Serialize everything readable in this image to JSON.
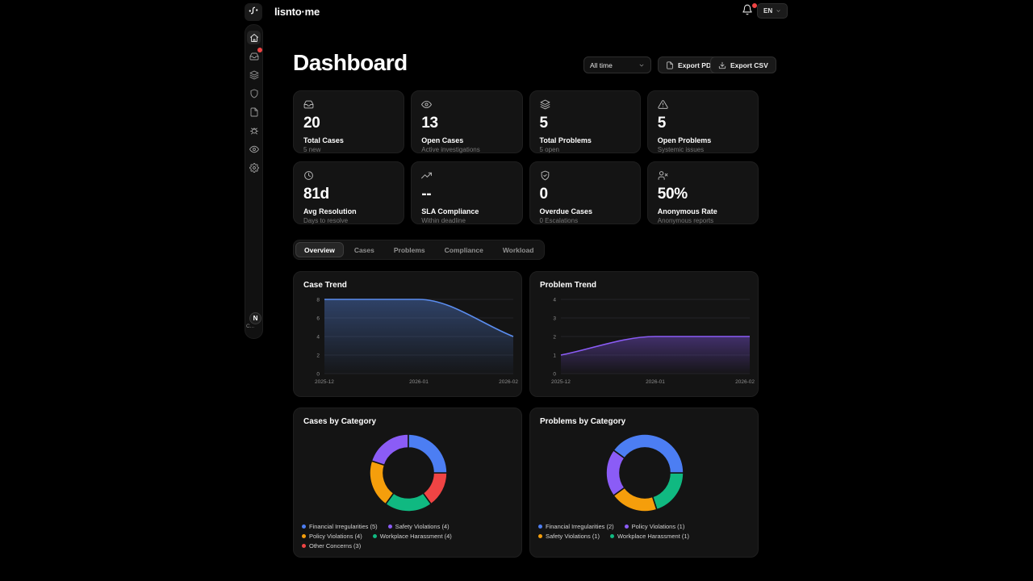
{
  "brand": {
    "name": "lisnto·me"
  },
  "topbar": {
    "language": "EN",
    "has_notification": true
  },
  "sidebar": {
    "items": [
      {
        "icon": "home-icon",
        "active": true
      },
      {
        "icon": "inbox-icon",
        "badge": true
      },
      {
        "icon": "layers-icon"
      },
      {
        "icon": "shield-icon"
      },
      {
        "icon": "document-icon"
      },
      {
        "icon": "bug-icon"
      },
      {
        "icon": "eye-icon"
      },
      {
        "icon": "settings-icon"
      }
    ],
    "user": {
      "initial": "N",
      "label": "C..."
    }
  },
  "header": {
    "title": "Dashboard",
    "time_filter": "All time",
    "export_pdf_label": "Export PDF",
    "export_csv_label": "Export CSV"
  },
  "stats": [
    {
      "icon": "inbox-icon",
      "value": "20",
      "label": "Total Cases",
      "sub": "5 new"
    },
    {
      "icon": "eye-icon",
      "value": "13",
      "label": "Open Cases",
      "sub": "Active investigations"
    },
    {
      "icon": "layers-icon",
      "value": "5",
      "label": "Total Problems",
      "sub": "5 open"
    },
    {
      "icon": "alert-triangle-icon",
      "value": "5",
      "label": "Open Problems",
      "sub": "Systemic issues"
    },
    {
      "icon": "clock-icon",
      "value": "81d",
      "label": "Avg Resolution",
      "sub": "Days to resolve"
    },
    {
      "icon": "trending-up-icon",
      "value": "--",
      "label": "SLA Compliance",
      "sub": "Within deadline"
    },
    {
      "icon": "shield-check-icon",
      "value": "0",
      "label": "Overdue Cases",
      "sub": "0 Escalations"
    },
    {
      "icon": "user-x-icon",
      "value": "50%",
      "label": "Anonymous Rate",
      "sub": "Anonymous reports"
    }
  ],
  "tabs": {
    "items": [
      "Overview",
      "Cases",
      "Problems",
      "Compliance",
      "Workload"
    ],
    "active": "Overview"
  },
  "chart_data": [
    {
      "type": "area",
      "title": "Case Trend",
      "x": [
        "2025-12",
        "2026-01",
        "2026-02"
      ],
      "values": [
        8,
        8,
        4
      ],
      "ylim": [
        0,
        8
      ],
      "yticks": [
        0,
        2,
        4,
        6,
        8
      ],
      "line_color": "#5b8def",
      "grid": true,
      "legend": "none"
    },
    {
      "type": "area",
      "title": "Problem Trend",
      "x": [
        "2025-12",
        "2026-01",
        "2026-02"
      ],
      "values": [
        1,
        2,
        2
      ],
      "ylim": [
        0,
        4
      ],
      "yticks": [
        0,
        1,
        2,
        3,
        4
      ],
      "line_color": "#8b5cf6",
      "grid": true,
      "legend": "none"
    },
    {
      "type": "donut",
      "title": "Cases by Category",
      "start_angle_deg": 90,
      "draw_order": "reverse-legend",
      "legend_position": "bottom",
      "items": [
        {
          "label": "Financial Irregularities",
          "value": 5,
          "color": "#4c7ef3"
        },
        {
          "label": "Safety Violations",
          "value": 4,
          "color": "#8b5cf6"
        },
        {
          "label": "Policy Violations",
          "value": 4,
          "color": "#f59e0b"
        },
        {
          "label": "Workplace Harassment",
          "value": 4,
          "color": "#10b981"
        },
        {
          "label": "Other Concerns",
          "value": 3,
          "color": "#ef4444"
        }
      ]
    },
    {
      "type": "donut",
      "title": "Problems by Category",
      "start_angle_deg": 90,
      "draw_order": "reverse-legend",
      "legend_position": "bottom",
      "items": [
        {
          "label": "Financial Irregularities",
          "value": 2,
          "color": "#4c7ef3"
        },
        {
          "label": "Policy Violations",
          "value": 1,
          "color": "#8b5cf6"
        },
        {
          "label": "Safety Violations",
          "value": 1,
          "color": "#f59e0b"
        },
        {
          "label": "Workplace Harassment",
          "value": 1,
          "color": "#10b981"
        }
      ]
    }
  ]
}
